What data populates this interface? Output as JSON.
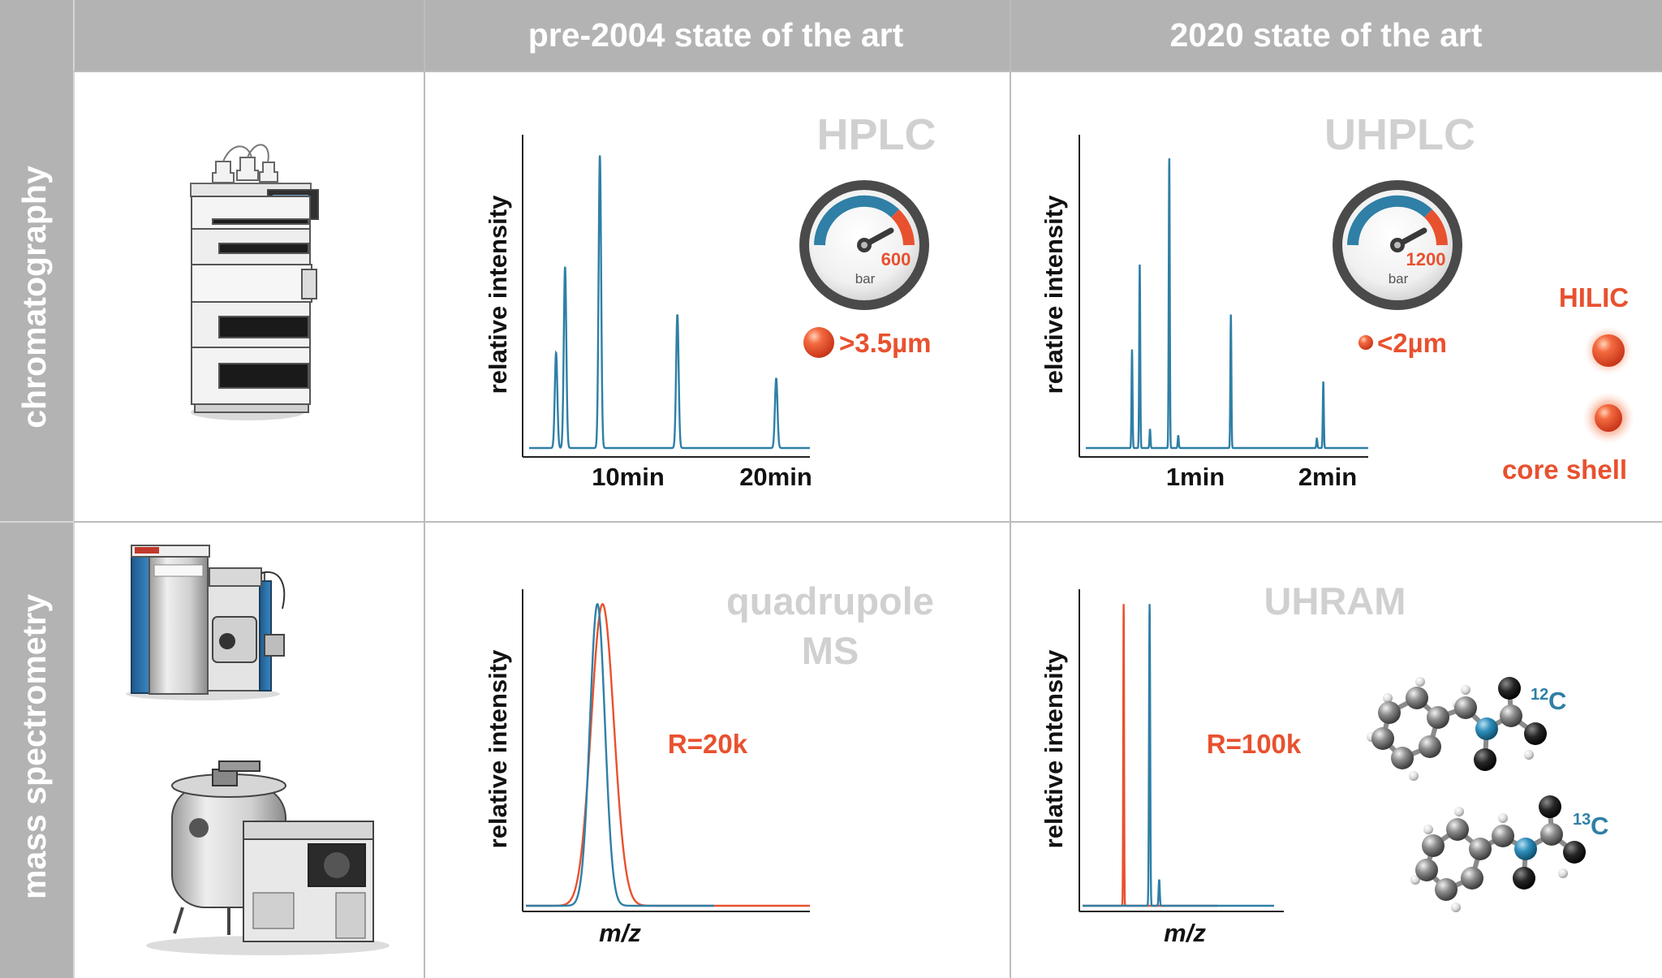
{
  "colors": {
    "header_bg": "#b3b3b3",
    "grid_line": "#bcbcbc",
    "trace_blue": "#2f7fa6",
    "accent_red": "#e8512f",
    "ghost_label": "#d0d0d0",
    "gauge_blue": "#2f7fa6"
  },
  "header": {
    "col1": "pre-2004 state of the art",
    "col2": "2020 state of the art"
  },
  "rows": {
    "row1": "chromatography",
    "row2": "mass spectrometry"
  },
  "instruments": {
    "chromatography": "hplc-instrument-stack",
    "ms_top": "orbitrap-mass-spectrometer",
    "ms_bottom": "ft-icr-mass-spectrometer"
  },
  "panels": {
    "hplc": {
      "title": "HPLC",
      "ylabel": "relative intensity",
      "ticks": [
        "10min",
        "20min"
      ],
      "gauge_value": "600",
      "gauge_unit": "bar",
      "particle": ">3.5µm"
    },
    "uhplc": {
      "title": "UHPLC",
      "ylabel": "relative intensity",
      "ticks": [
        "1min",
        "2min"
      ],
      "gauge_value": "1200",
      "gauge_unit": "bar",
      "particle": "<2µm",
      "hilic": "HILIC",
      "core_shell": "core shell"
    },
    "quad": {
      "title_line1": "quadrupole",
      "title_line2": "MS",
      "ylabel": "relative intensity",
      "xlabel": "m/z",
      "resolution": "R=20k"
    },
    "uhram": {
      "title": "UHRAM",
      "ylabel": "relative intensity",
      "xlabel": "m/z",
      "resolution": "R=100k",
      "iso12_mass": "12",
      "iso12_elem": "C",
      "iso13_mass": "13",
      "iso13_elem": "C"
    }
  },
  "chart_data": [
    {
      "type": "line",
      "ylabel": "relative intensity",
      "tick_labels": [
        "10min",
        "20min"
      ],
      "x_unit": "min",
      "xlim": [
        0,
        25
      ],
      "ylim": [
        0,
        1
      ],
      "series": [
        {
          "peaks": [
            {
              "t": 2.4,
              "h": 0.3
            },
            {
              "t": 3.2,
              "h": 0.57
            },
            {
              "t": 6.3,
              "h": 0.92
            },
            {
              "t": 13.2,
              "h": 0.42
            },
            {
              "t": 22.0,
              "h": 0.22
            }
          ]
        }
      ]
    },
    {
      "type": "line",
      "ylabel": "relative intensity",
      "tick_labels": [
        "1min",
        "2min"
      ],
      "x_unit": "min",
      "xlim": [
        0,
        2.2
      ],
      "ylim": [
        0,
        1
      ],
      "series": [
        {
          "peaks": [
            {
              "t": 0.36,
              "h": 0.31
            },
            {
              "t": 0.42,
              "h": 0.58
            },
            {
              "t": 0.5,
              "h": 0.06
            },
            {
              "t": 0.65,
              "h": 0.92
            },
            {
              "t": 0.72,
              "h": 0.04
            },
            {
              "t": 1.13,
              "h": 0.42
            },
            {
              "t": 1.8,
              "h": 0.03
            },
            {
              "t": 1.85,
              "h": 0.21
            }
          ]
        }
      ]
    },
    {
      "type": "line",
      "ylabel": "relative intensity",
      "xlabel": "m/z",
      "annotation": "R=20k",
      "ylim": [
        0,
        1
      ],
      "series": [
        {
          "color": "red",
          "center": 0.27,
          "width": 0.04,
          "height": 0.92
        },
        {
          "color": "blue",
          "center": 0.38,
          "width": 0.04,
          "height": 0.92
        }
      ]
    },
    {
      "type": "line",
      "ylabel": "relative intensity",
      "xlabel": "m/z",
      "annotation": "R=100k",
      "ylim": [
        0,
        1
      ],
      "series": [
        {
          "color": "red",
          "center": 0.305,
          "width": 0.003,
          "height": 0.92
        },
        {
          "color": "blue",
          "center": 0.35,
          "width": 0.003,
          "height": 0.92,
          "minor": {
            "center": 0.4,
            "height": 0.08
          }
        }
      ]
    }
  ]
}
